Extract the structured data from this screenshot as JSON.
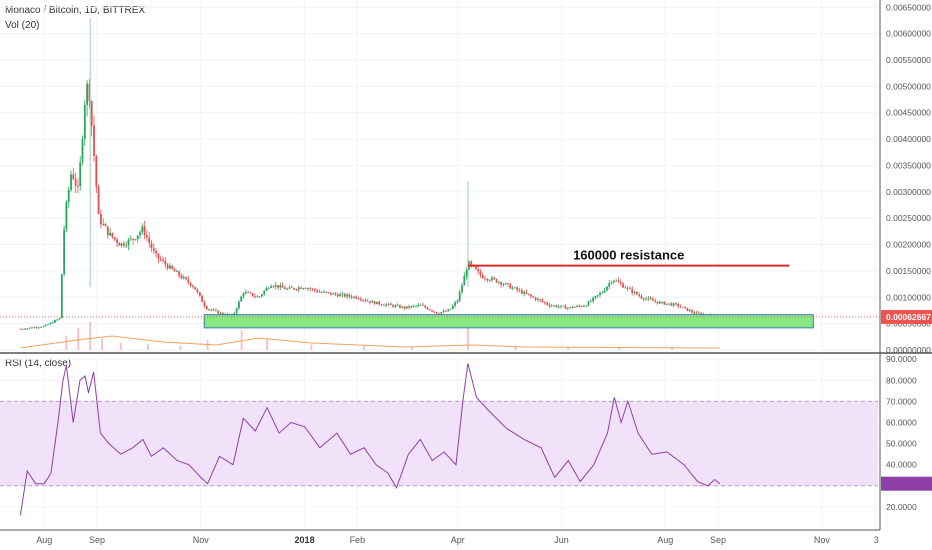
{
  "header": {
    "title": "Monaco / Bitcoin, 1D, BITTREX",
    "volume_label": "Vol (20)",
    "rsi_label": "RSI (14, close)"
  },
  "chart_data": [
    {
      "type": "candlestick",
      "title": "Monaco / Bitcoin, 1D, BITTREX",
      "ylim": [
        0,
        0.0066
      ],
      "yticks": [
        "0.00650000",
        "0.00600000",
        "0.00550000",
        "0.00500000",
        "0.00450000",
        "0.00400000",
        "0.00350000",
        "0.00300000",
        "0.00250000",
        "0.00200000",
        "0.00150000",
        "0.00100000",
        "0.00050000",
        "0.00000000"
      ],
      "ytick_values": [
        0.0065,
        0.006,
        0.0055,
        0.005,
        0.0045,
        0.004,
        0.0035,
        0.003,
        0.0025,
        0.002,
        0.0015,
        0.001,
        0.0005,
        0.0
      ],
      "last_price": "0.00062667",
      "last_price_value": 0.00062667,
      "xticks": [
        {
          "label": "Aug",
          "bold": false
        },
        {
          "label": "Sep",
          "bold": false
        },
        {
          "label": "Nov",
          "bold": false
        },
        {
          "label": "2018",
          "bold": true
        },
        {
          "label": "Feb",
          "bold": false
        },
        {
          "label": "Apr",
          "bold": false
        },
        {
          "label": "Jun",
          "bold": false
        },
        {
          "label": "Aug",
          "bold": false
        },
        {
          "label": "Sep",
          "bold": false
        },
        {
          "label": "Nov",
          "bold": false
        },
        {
          "label": "3",
          "bold": false
        }
      ],
      "close_series": [
        [
          "2017-07-18",
          0.0004
        ],
        [
          "2017-08-01",
          0.00045
        ],
        [
          "2017-08-10",
          0.0006
        ],
        [
          "2017-08-13",
          0.0025
        ],
        [
          "2017-08-17",
          0.0034
        ],
        [
          "2017-08-21",
          0.003
        ],
        [
          "2017-08-25",
          0.0048
        ],
        [
          "2017-08-27",
          0.0051
        ],
        [
          "2017-08-30",
          0.0038
        ],
        [
          "2017-09-02",
          0.0025
        ],
        [
          "2017-09-08",
          0.0022
        ],
        [
          "2017-09-15",
          0.002
        ],
        [
          "2017-09-22",
          0.0021
        ],
        [
          "2017-09-28",
          0.0023
        ],
        [
          "2017-10-05",
          0.0018
        ],
        [
          "2017-10-12",
          0.0016
        ],
        [
          "2017-10-20",
          0.0014
        ],
        [
          "2017-10-28",
          0.0012
        ],
        [
          "2017-11-04",
          0.0008
        ],
        [
          "2017-11-12",
          0.0007
        ],
        [
          "2017-11-20",
          0.00065
        ],
        [
          "2017-11-26",
          0.0011
        ],
        [
          "2017-12-05",
          0.001
        ],
        [
          "2017-12-12",
          0.00125
        ],
        [
          "2017-12-22",
          0.00115
        ],
        [
          "2018-01-01",
          0.0012
        ],
        [
          "2018-01-10",
          0.0011
        ],
        [
          "2018-01-20",
          0.00105
        ],
        [
          "2018-02-01",
          0.001
        ],
        [
          "2018-02-10",
          0.0009
        ],
        [
          "2018-02-20",
          0.00085
        ],
        [
          "2018-03-01",
          0.0008
        ],
        [
          "2018-03-10",
          0.00085
        ],
        [
          "2018-03-20",
          0.0007
        ],
        [
          "2018-03-27",
          0.00075
        ],
        [
          "2018-04-01",
          0.00095
        ],
        [
          "2018-04-05",
          0.0014
        ],
        [
          "2018-04-07",
          0.00165
        ],
        [
          "2018-04-15",
          0.0014
        ],
        [
          "2018-04-25",
          0.0013
        ],
        [
          "2018-05-05",
          0.00115
        ],
        [
          "2018-05-15",
          0.001
        ],
        [
          "2018-05-25",
          0.00085
        ],
        [
          "2018-06-05",
          0.0008
        ],
        [
          "2018-06-15",
          0.00085
        ],
        [
          "2018-06-25",
          0.0011
        ],
        [
          "2018-07-01",
          0.00135
        ],
        [
          "2018-07-08",
          0.0012
        ],
        [
          "2018-07-18",
          0.001
        ],
        [
          "2018-07-28",
          0.0009
        ],
        [
          "2018-08-08",
          0.00085
        ],
        [
          "2018-08-18",
          0.0007
        ],
        [
          "2018-08-28",
          0.00065
        ],
        [
          "2018-09-01",
          0.00063
        ]
      ],
      "spikes": [
        {
          "date": "2017-08-28",
          "high": 0.0063
        },
        {
          "date": "2018-04-07",
          "high": 0.0032
        }
      ],
      "annotations": {
        "resistance_label": "160000 resistance",
        "resistance_price": 0.0016,
        "resistance_range": [
          "2018-04-07",
          "2018-10-13"
        ],
        "support_zone_range": [
          "2017-11-03",
          "2018-10-27"
        ],
        "support_zone_price": [
          0.00042,
          0.00067
        ],
        "resistance_color": "#d32f2f",
        "support_color": "#7fe87a"
      },
      "colors": {
        "up": "#26a65b",
        "down": "#e05252",
        "last_price_bg": "#ef5350"
      }
    },
    {
      "type": "line",
      "title": "RSI (14, close)",
      "ylim": [
        10,
        92
      ],
      "yticks": [
        "90.0000",
        "80.0000",
        "70.0000",
        "60.0000",
        "50.0000",
        "40.0000",
        "30.0000",
        "20.0000"
      ],
      "ytick_values": [
        90,
        80,
        70,
        60,
        50,
        40,
        30,
        20
      ],
      "bands": [
        30,
        70
      ],
      "band_color": "#ecd8f8",
      "line_color": "#8e3fa8",
      "series": [
        [
          "2017-07-18",
          16
        ],
        [
          "2017-07-22",
          37
        ],
        [
          "2017-07-27",
          31
        ],
        [
          "2017-08-01",
          31
        ],
        [
          "2017-08-05",
          36
        ],
        [
          "2017-08-09",
          60
        ],
        [
          "2017-08-12",
          80
        ],
        [
          "2017-08-14",
          87
        ],
        [
          "2017-08-18",
          60
        ],
        [
          "2017-08-22",
          80
        ],
        [
          "2017-08-25",
          82
        ],
        [
          "2017-08-27",
          74
        ],
        [
          "2017-08-30",
          84
        ],
        [
          "2017-09-03",
          55
        ],
        [
          "2017-09-08",
          50
        ],
        [
          "2017-09-15",
          45
        ],
        [
          "2017-09-22",
          48
        ],
        [
          "2017-09-28",
          52
        ],
        [
          "2017-10-03",
          44
        ],
        [
          "2017-10-10",
          48
        ],
        [
          "2017-10-18",
          42
        ],
        [
          "2017-10-25",
          40
        ],
        [
          "2017-11-01",
          34
        ],
        [
          "2017-11-05",
          31
        ],
        [
          "2017-11-12",
          44
        ],
        [
          "2017-11-20",
          40
        ],
        [
          "2017-11-26",
          62
        ],
        [
          "2017-12-03",
          56
        ],
        [
          "2017-12-10",
          67
        ],
        [
          "2017-12-17",
          55
        ],
        [
          "2017-12-24",
          60
        ],
        [
          "2018-01-01",
          58
        ],
        [
          "2018-01-10",
          48
        ],
        [
          "2018-01-20",
          55
        ],
        [
          "2018-01-28",
          45
        ],
        [
          "2018-02-05",
          48
        ],
        [
          "2018-02-12",
          40
        ],
        [
          "2018-02-19",
          36
        ],
        [
          "2018-02-24",
          29
        ],
        [
          "2018-03-03",
          45
        ],
        [
          "2018-03-10",
          52
        ],
        [
          "2018-03-17",
          42
        ],
        [
          "2018-03-24",
          46
        ],
        [
          "2018-03-31",
          40
        ],
        [
          "2018-04-04",
          70
        ],
        [
          "2018-04-07",
          88
        ],
        [
          "2018-04-12",
          72
        ],
        [
          "2018-04-20",
          65
        ],
        [
          "2018-04-30",
          57
        ],
        [
          "2018-05-10",
          52
        ],
        [
          "2018-05-20",
          48
        ],
        [
          "2018-05-28",
          34
        ],
        [
          "2018-06-05",
          42
        ],
        [
          "2018-06-12",
          32
        ],
        [
          "2018-06-20",
          40
        ],
        [
          "2018-06-28",
          55
        ],
        [
          "2018-07-02",
          72
        ],
        [
          "2018-07-06",
          60
        ],
        [
          "2018-07-10",
          70
        ],
        [
          "2018-07-16",
          55
        ],
        [
          "2018-07-24",
          45
        ],
        [
          "2018-08-02",
          46
        ],
        [
          "2018-08-12",
          40
        ],
        [
          "2018-08-20",
          32
        ],
        [
          "2018-08-26",
          30
        ],
        [
          "2018-08-30",
          33
        ],
        [
          "2018-09-02",
          31
        ]
      ]
    },
    {
      "type": "bar",
      "title": "Vol (20)",
      "series": [
        [
          "2017-08-14",
          0.5
        ],
        [
          "2017-08-21",
          0.8
        ],
        [
          "2017-08-28",
          1.0
        ],
        [
          "2017-09-04",
          0.4
        ],
        [
          "2017-09-15",
          0.25
        ],
        [
          "2017-10-01",
          0.2
        ],
        [
          "2017-10-20",
          0.15
        ],
        [
          "2017-11-05",
          0.35
        ],
        [
          "2017-11-25",
          0.7
        ],
        [
          "2017-12-10",
          0.4
        ],
        [
          "2018-01-05",
          0.2
        ],
        [
          "2018-02-05",
          0.15
        ],
        [
          "2018-03-05",
          0.12
        ],
        [
          "2018-04-07",
          0.9
        ],
        [
          "2018-05-05",
          0.15
        ],
        [
          "2018-06-05",
          0.1
        ],
        [
          "2018-07-05",
          0.12
        ],
        [
          "2018-08-05",
          0.08
        ]
      ]
    }
  ]
}
